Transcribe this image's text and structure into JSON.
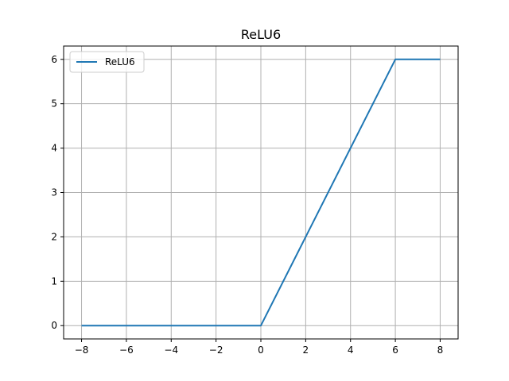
{
  "chart_data": {
    "type": "line",
    "title": "ReLU6",
    "xlabel": "",
    "ylabel": "",
    "xlim": [
      -8.8,
      8.8
    ],
    "ylim": [
      -0.3,
      6.3
    ],
    "xticks": [
      -8,
      -6,
      -4,
      -2,
      0,
      2,
      4,
      6,
      8
    ],
    "yticks": [
      0,
      1,
      2,
      3,
      4,
      5,
      6
    ],
    "grid": true,
    "legend_position": "upper-left",
    "series": [
      {
        "name": "ReLU6",
        "color": "#1f77b4",
        "x": [
          -8,
          -6,
          -4,
          -2,
          0,
          2,
          4,
          6,
          8
        ],
        "y": [
          0,
          0,
          0,
          0,
          0,
          2,
          4,
          6,
          6
        ]
      }
    ]
  }
}
